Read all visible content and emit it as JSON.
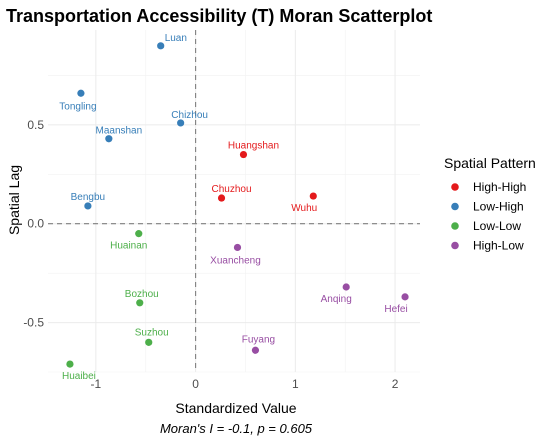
{
  "chart_data": {
    "type": "scatter",
    "title": "Transportation Accessibility (T) Moran Scatterplot",
    "xlabel": "Standardized Value",
    "ylabel": "Spatial Lag",
    "caption": "Moran's I = -0.1, p = 0.605",
    "xlim": [
      -1.48,
      2.25
    ],
    "ylim": [
      -0.75,
      0.98
    ],
    "x_ticks": [
      -1,
      0,
      1,
      2
    ],
    "x_tick_labels": [
      "-1",
      "0",
      "1",
      "2"
    ],
    "y_ticks": [
      -0.5,
      0,
      0.5
    ],
    "y_tick_labels": [
      "-0.5",
      "0.0",
      "0.5"
    ],
    "grid": true,
    "reference_lines": {
      "x": 0,
      "y": 0,
      "style": "dashed"
    },
    "legend": {
      "title": "Spatial Pattern",
      "placement": "right",
      "entries": [
        {
          "label": "High-High",
          "color": "#e41a1c"
        },
        {
          "label": "Low-High",
          "color": "#377eb8"
        },
        {
          "label": "Low-Low",
          "color": "#4daf4a"
        },
        {
          "label": "High-Low",
          "color": "#984ea3"
        }
      ]
    },
    "points": [
      {
        "name": "Luan",
        "x": -0.35,
        "y": 0.9,
        "group": "Low-High"
      },
      {
        "name": "Tongling",
        "x": -1.15,
        "y": 0.66,
        "group": "Low-High"
      },
      {
        "name": "Chizhou",
        "x": -0.15,
        "y": 0.51,
        "group": "Low-High"
      },
      {
        "name": "Maanshan",
        "x": -0.87,
        "y": 0.43,
        "group": "Low-High"
      },
      {
        "name": "Bengbu",
        "x": -1.08,
        "y": 0.09,
        "group": "Low-High"
      },
      {
        "name": "Huangshan",
        "x": 0.48,
        "y": 0.35,
        "group": "High-High"
      },
      {
        "name": "Chuzhou",
        "x": 0.26,
        "y": 0.13,
        "group": "High-High"
      },
      {
        "name": "Wuhu",
        "x": 1.18,
        "y": 0.14,
        "group": "High-High"
      },
      {
        "name": "Huainan",
        "x": -0.57,
        "y": -0.05,
        "group": "Low-Low"
      },
      {
        "name": "Bozhou",
        "x": -0.56,
        "y": -0.4,
        "group": "Low-Low"
      },
      {
        "name": "Suzhou",
        "x": -0.47,
        "y": -0.6,
        "group": "Low-Low"
      },
      {
        "name": "Huaibei",
        "x": -1.26,
        "y": -0.71,
        "group": "Low-Low"
      },
      {
        "name": "Xuancheng",
        "x": 0.42,
        "y": -0.12,
        "group": "High-Low"
      },
      {
        "name": "Anqing",
        "x": 1.51,
        "y": -0.32,
        "group": "High-Low"
      },
      {
        "name": "Hefei",
        "x": 2.1,
        "y": -0.37,
        "group": "High-Low"
      },
      {
        "name": "Fuyang",
        "x": 0.6,
        "y": -0.64,
        "group": "High-Low"
      }
    ]
  }
}
